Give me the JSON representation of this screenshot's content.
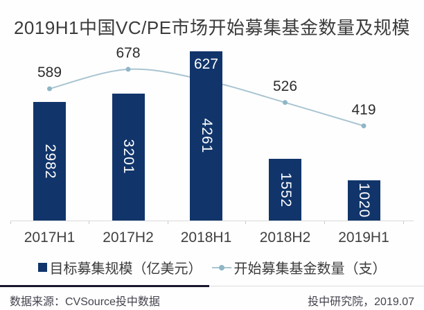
{
  "title": "2019H1中国VC/PE市场开始募集基金数量及规模",
  "chart_data": {
    "type": "bar+line combo",
    "categories": [
      "2017H1",
      "2017H2",
      "2018H1",
      "2018H2",
      "2019H1"
    ],
    "series": [
      {
        "name": "目标募集规模（亿美元）",
        "type": "bar",
        "values": [
          2982,
          3201,
          4261,
          1552,
          1020
        ],
        "color": "#11356b",
        "label_color": "#ffffff",
        "label_rotation": 90
      },
      {
        "name": "开始募集基金数量（支）",
        "type": "line",
        "values": [
          589,
          678,
          627,
          526,
          419
        ],
        "color": "#a9c5d1",
        "marker_color": "#8fb6c6",
        "smooth": true
      }
    ],
    "title": "2019H1中国VC/PE市场开始募集基金数量及规模",
    "xlabel": "",
    "ylabel": "",
    "grid": false,
    "y_axis_visible": false,
    "legend_position": "bottom",
    "data_labels_visible": true
  },
  "legend": {
    "bar_label": "目标募集规模（亿美元）",
    "line_label": "开始募集基金数量（支）"
  },
  "footer": {
    "source": "数据来源：CVSource投中数据",
    "credit": "投中研究院，2019.07"
  },
  "icons": {
    "bar_legend_swatch": "filled-square",
    "line_legend_marker": "line-with-dot"
  },
  "colors": {
    "bar": "#11356b",
    "line": "#a9c5d1",
    "line_marker": "#8fb6c6",
    "title_text": "#3b3b3b",
    "axis_label_text": "#404040",
    "data_label_text": "#2d2d2d",
    "axis_line": "#d9d9d9",
    "divider_dark": "#17172b",
    "divider_light": "#dcdcdc",
    "footer_text": "#43434d",
    "background": "#fefefe"
  }
}
